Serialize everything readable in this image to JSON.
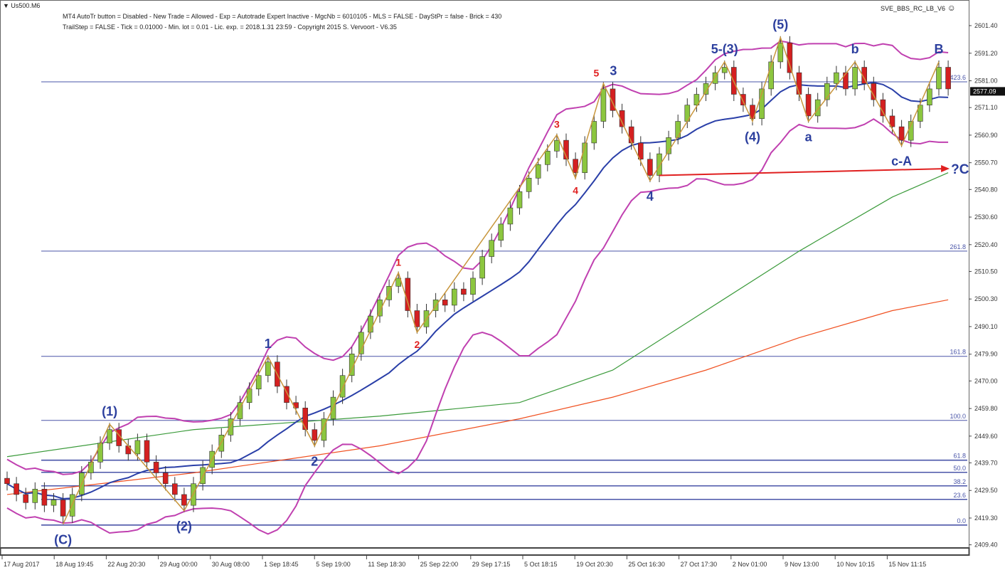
{
  "header": {
    "symbol": "Us500.M6",
    "info_line1": "MT4 AutoTr button = Disabled - New Trade = Allowed - Exp = Autotrade Expert Inactive - MgcNb = 6010105 - MLS = FALSE - DayStPr = false - Brick = 430",
    "info_line2": "TrailStep = FALSE - Tick = 0.01000 - Min. lot = 0.01 - Lic. exp. = 2018.1.31 23:59 - Copyright 2015 S. Vervoort - V6.35",
    "indicator_name": "SVE_BBS_RC_LB_V6"
  },
  "chart_data": {
    "type": "candlestick",
    "title": "Us500.M6",
    "ylim": [
      2405.0,
      2610.0
    ],
    "y_ticks": [
      "2601.40",
      "2591.20",
      "2581.00",
      "2571.10",
      "2560.90",
      "2550.70",
      "2540.80",
      "2530.60",
      "2520.40",
      "2510.50",
      "2500.30",
      "2490.10",
      "2479.90",
      "2470.00",
      "2459.80",
      "2449.60",
      "2439.70",
      "2429.50",
      "2419.30",
      "2409.40"
    ],
    "x_labels": [
      "17 Aug 2017",
      "18 Aug 19:45",
      "22 Aug 20:30",
      "29 Aug 00:00",
      "30 Aug 08:00",
      "1 Sep 18:45",
      "5 Sep 19:00",
      "11 Sep 18:30",
      "25 Sep 22:00",
      "29 Sep 17:15",
      "5 Oct 18:15",
      "19 Oct 20:30",
      "25 Oct 16:30",
      "27 Oct 17:30",
      "2 Nov 01:00",
      "9 Nov 13:00",
      "10 Nov 10:15",
      "15 Nov 11:15"
    ],
    "last_price": "2577.09",
    "colors": {
      "up": "#8cc63f",
      "down": "#d42020",
      "ma": "#2a3fa8",
      "bands": "#c040b0",
      "ma_long1": "#3a9a3a",
      "ma_long2": "#f05020",
      "zigzag": "#c8963c",
      "fib": "#4a55a8",
      "arrow": "#e02020",
      "wave_blue": "#2c3f9e",
      "wave_red": "#e02020"
    },
    "closes": [
      2432,
      2428,
      2425,
      2430,
      2424,
      2426,
      2420,
      2428,
      2436,
      2440,
      2447,
      2452,
      2446,
      2443,
      2448,
      2440,
      2436,
      2432,
      2428,
      2424,
      2432,
      2438,
      2444,
      2450,
      2456,
      2462,
      2467,
      2472,
      2477,
      2468,
      2462,
      2460,
      2452,
      2448,
      2456,
      2464,
      2472,
      2480,
      2488,
      2494,
      2500,
      2505,
      2508,
      2496,
      2490,
      2496,
      2500,
      2498,
      2504,
      2502,
      2508,
      2516,
      2522,
      2528,
      2534,
      2540,
      2545,
      2550,
      2555,
      2559,
      2552,
      2547,
      2558,
      2566,
      2578,
      2570,
      2564,
      2558,
      2552,
      2546,
      2554,
      2560,
      2566,
      2572,
      2576,
      2580,
      2584,
      2586,
      2576,
      2572,
      2567,
      2578,
      2588,
      2595,
      2584,
      2576,
      2568,
      2574,
      2580,
      2584,
      2578,
      2586,
      2580,
      2574,
      2568,
      2564,
      2559,
      2566,
      2572,
      2578,
      2586,
      2578
    ],
    "first_open": 2434,
    "long_ma_green": [
      [
        0,
        2442
      ],
      [
        20,
        2452
      ],
      [
        40,
        2457
      ],
      [
        55,
        2462
      ],
      [
        65,
        2474
      ],
      [
        75,
        2496
      ],
      [
        85,
        2518
      ],
      [
        95,
        2538
      ],
      [
        101,
        2547
      ]
    ],
    "long_ma_orange": [
      [
        0,
        2428
      ],
      [
        20,
        2436
      ],
      [
        40,
        2446
      ],
      [
        55,
        2456
      ],
      [
        65,
        2464
      ],
      [
        75,
        2474
      ],
      [
        85,
        2486
      ],
      [
        95,
        2496
      ],
      [
        101,
        2500
      ]
    ],
    "fib_levels": [
      {
        "label": "423.6",
        "price": 2580.6
      },
      {
        "label": "261.8",
        "price": 2518.0
      },
      {
        "label": "161.8",
        "price": 2479.1
      },
      {
        "label": "100.0",
        "price": 2455.4
      },
      {
        "label": "61.8",
        "price": 2440.7
      },
      {
        "label": "50.0",
        "price": 2436.2
      },
      {
        "label": "38.2",
        "price": 2431.2
      },
      {
        "label": "23.6",
        "price": 2426.2
      },
      {
        "label": "0.0",
        "price": 2416.7
      }
    ],
    "waves": [
      {
        "i": 6,
        "price": 2417,
        "label": "(C)",
        "color": "blue",
        "pos": "below"
      },
      {
        "i": 11,
        "price": 2454,
        "label": "(1)",
        "color": "blue",
        "pos": "above"
      },
      {
        "i": 19,
        "price": 2422,
        "label": "(2)",
        "color": "blue",
        "pos": "below"
      },
      {
        "i": 28,
        "price": 2479,
        "label": "1",
        "color": "blue",
        "pos": "above"
      },
      {
        "i": 33,
        "price": 2446,
        "label": "2",
        "color": "blue",
        "pos": "below"
      },
      {
        "i": 42,
        "price": 2510,
        "label": "1",
        "color": "red",
        "pos": "above"
      },
      {
        "i": 44,
        "price": 2488,
        "label": "2",
        "color": "red",
        "pos": "below"
      },
      {
        "i": 59,
        "price": 2561,
        "label": "3",
        "color": "red",
        "pos": "above"
      },
      {
        "i": 61,
        "price": 2545,
        "label": "4",
        "color": "red",
        "pos": "below"
      },
      {
        "i": 64,
        "price": 2580,
        "label": "5",
        "color": "red",
        "pos": "above"
      },
      {
        "i": 64,
        "price": 2580,
        "label": "3",
        "color": "blue",
        "pos": "above-right"
      },
      {
        "i": 69,
        "price": 2544,
        "label": "4",
        "color": "blue",
        "pos": "below"
      },
      {
        "i": 77,
        "price": 2588,
        "label": "5-(3)",
        "color": "blue",
        "pos": "above"
      },
      {
        "i": 80,
        "price": 2566,
        "label": "(4)",
        "color": "blue",
        "pos": "below"
      },
      {
        "i": 83,
        "price": 2597,
        "label": "(5)",
        "color": "blue",
        "pos": "above"
      },
      {
        "i": 86,
        "price": 2566,
        "label": "a",
        "color": "blue",
        "pos": "below"
      },
      {
        "i": 91,
        "price": 2588,
        "label": "b",
        "color": "blue",
        "pos": "above"
      },
      {
        "i": 96,
        "price": 2557,
        "label": "c-A",
        "color": "blue",
        "pos": "below"
      },
      {
        "i": 100,
        "price": 2588,
        "label": "B",
        "color": "blue",
        "pos": "above"
      }
    ],
    "target": {
      "label": "?C",
      "from_i": 70,
      "from_price": 2546,
      "to_i": 101,
      "to_price": 2548.5
    }
  }
}
